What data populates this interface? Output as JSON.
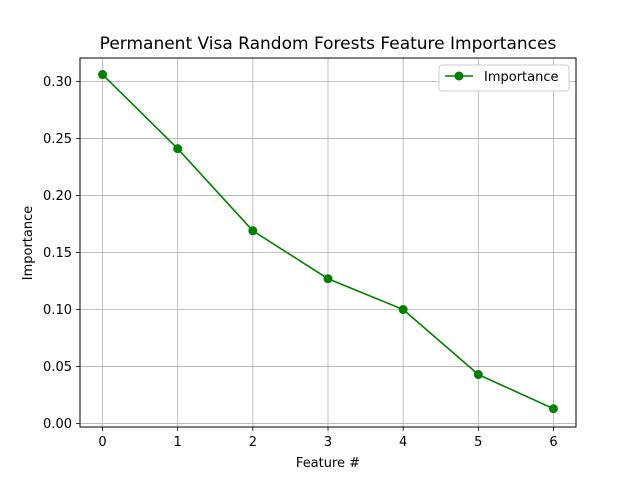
{
  "chart_data": {
    "type": "line",
    "title": "Permanent Visa Random Forests Feature Importances",
    "xlabel": "Feature #",
    "ylabel": "Importance",
    "x": [
      0,
      1,
      2,
      3,
      4,
      5,
      6
    ],
    "series": [
      {
        "name": "Importance",
        "values": [
          0.306,
          0.241,
          0.169,
          0.127,
          0.1,
          0.043,
          0.013
        ],
        "color": "#008000",
        "marker": "circle"
      }
    ],
    "xlim": [
      -0.3,
      6.3
    ],
    "ylim": [
      -0.003,
      0.3205
    ],
    "xticks": [
      0,
      1,
      2,
      3,
      4,
      5,
      6
    ],
    "xtick_labels": [
      "0",
      "1",
      "2",
      "3",
      "4",
      "5",
      "6"
    ],
    "yticks": [
      0.0,
      0.05,
      0.1,
      0.15,
      0.2,
      0.25,
      0.3
    ],
    "ytick_labels": [
      "0.00",
      "0.05",
      "0.10",
      "0.15",
      "0.20",
      "0.25",
      "0.30"
    ],
    "grid": true,
    "legend": "upper right"
  }
}
